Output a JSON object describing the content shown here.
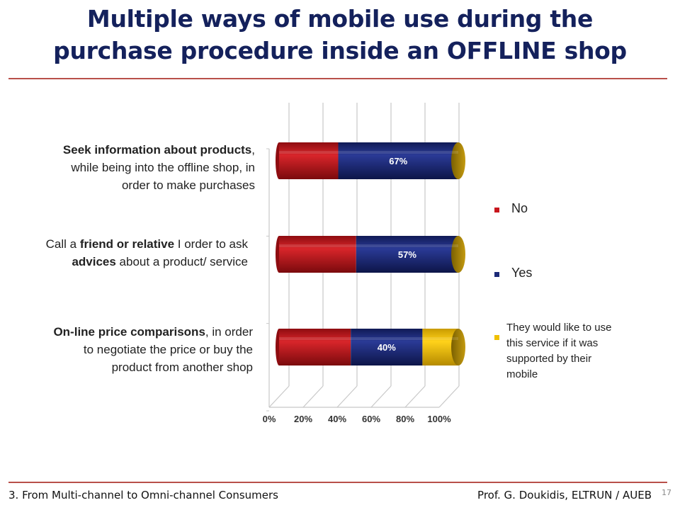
{
  "slide": {
    "title_line1": "Multiple ways of mobile use during the",
    "title_line2": "purchase procedure inside an OFFLINE shop",
    "footer_left": "3. From Multi-channel to Omni-channel Consumers",
    "footer_right": "Prof. G. Doukidis, ELTRUN / AUEB",
    "page_number": "17"
  },
  "labels": [
    {
      "lines": [
        {
          "bold": "Seek information about products",
          "rest": ","
        },
        {
          "bold": "",
          "rest": "while being into the offline shop, in"
        },
        {
          "bold": "",
          "rest": "order to make purchases"
        }
      ]
    },
    {
      "lines": [
        {
          "pre": "Call a ",
          "bold": "friend or relative",
          "rest": " I order to ask"
        },
        {
          "pre": "",
          "bold": "advices",
          "rest": " about a product/ service"
        }
      ]
    },
    {
      "lines": [
        {
          "pre": "",
          "bold": "On-line price comparisons",
          "rest": ", in order"
        },
        {
          "pre": "",
          "bold": "",
          "rest": "to negotiate the price or buy the"
        },
        {
          "pre": "",
          "bold": "",
          "rest": "product from another shop"
        }
      ]
    }
  ],
  "chart_data": {
    "type": "bar",
    "orientation": "horizontal",
    "stacked": true,
    "style": "3d-cylinder",
    "categories": [
      "Seek information about products, while being into the offline shop, in order to make purchases",
      "Call a friend or relative I order to ask advices about a product/ service",
      "On-line price comparisons, in order to negotiate the price or buy the product from another shop"
    ],
    "series": [
      {
        "name": "No",
        "values": [
          33,
          43,
          40
        ],
        "color": "#c8161d"
      },
      {
        "name": "Yes",
        "values": [
          67,
          57,
          40
        ],
        "color": "#1c2a78",
        "data_labels": [
          "67%",
          "57%",
          "40%"
        ]
      },
      {
        "name": "They would like to use this service if it was supported by their mobile",
        "values": [
          0,
          0,
          20
        ],
        "color": "#f0c000"
      }
    ],
    "xlim": [
      0,
      100
    ],
    "xticks": [
      "0%",
      "20%",
      "40%",
      "60%",
      "80%",
      "100%"
    ],
    "grid": true,
    "legend_position": "right"
  },
  "legend": [
    {
      "label": "No",
      "color": "#c8161d"
    },
    {
      "label": "Yes",
      "color": "#1c2a78"
    },
    {
      "label": "They would like to use this service if it was supported by their mobile",
      "lines": [
        "They would like to use",
        "this service if it was",
        "supported by their",
        "mobile"
      ],
      "color": "#f0c000"
    }
  ]
}
